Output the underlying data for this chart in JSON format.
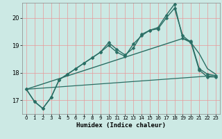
{
  "title": "",
  "xlabel": "Humidex (Indice chaleur)",
  "ylabel": "",
  "bg_color": "#cce9e4",
  "line_color": "#2a6e64",
  "grid_color": "#e89898",
  "xlim": [
    -0.5,
    23.5
  ],
  "ylim": [
    16.5,
    20.55
  ],
  "yticks": [
    17,
    18,
    19,
    20
  ],
  "xticks": [
    0,
    1,
    2,
    3,
    4,
    5,
    6,
    7,
    8,
    9,
    10,
    11,
    12,
    13,
    14,
    15,
    16,
    17,
    18,
    19,
    20,
    21,
    22,
    23
  ],
  "series": [
    {
      "x": [
        0,
        1,
        2,
        3,
        4,
        5,
        6,
        7,
        8,
        9,
        10,
        11,
        12,
        13,
        14,
        15,
        16,
        17,
        18,
        19,
        20,
        21,
        22,
        23
      ],
      "y": [
        17.4,
        16.95,
        16.7,
        17.1,
        17.75,
        17.95,
        18.15,
        18.35,
        18.55,
        18.75,
        19.1,
        18.85,
        18.65,
        18.9,
        19.4,
        19.55,
        19.65,
        20.1,
        20.5,
        19.25,
        19.15,
        18.15,
        17.95,
        17.9
      ],
      "marker": "D",
      "markersize": 2.5,
      "linewidth": 1.0,
      "zorder": 4
    },
    {
      "x": [
        0,
        1,
        2,
        3,
        4,
        5,
        6,
        7,
        8,
        9,
        10,
        11,
        12,
        13,
        14,
        15,
        16,
        17,
        18,
        19,
        20,
        21,
        22,
        23
      ],
      "y": [
        17.4,
        16.95,
        16.7,
        17.1,
        17.75,
        17.95,
        18.15,
        18.35,
        18.55,
        18.75,
        19.0,
        18.75,
        18.6,
        19.05,
        19.35,
        19.55,
        19.6,
        20.0,
        20.35,
        19.35,
        19.1,
        18.1,
        17.85,
        17.85
      ],
      "marker": "D",
      "markersize": 2.5,
      "linewidth": 1.0,
      "zorder": 3
    },
    {
      "x": [
        0,
        19,
        20,
        21,
        22,
        23
      ],
      "y": [
        17.4,
        19.25,
        19.1,
        18.7,
        18.15,
        17.95
      ],
      "marker": null,
      "markersize": 0,
      "linewidth": 1.0,
      "zorder": 2
    },
    {
      "x": [
        0,
        23
      ],
      "y": [
        17.4,
        17.9
      ],
      "marker": null,
      "markersize": 0,
      "linewidth": 0.9,
      "zorder": 1
    }
  ]
}
